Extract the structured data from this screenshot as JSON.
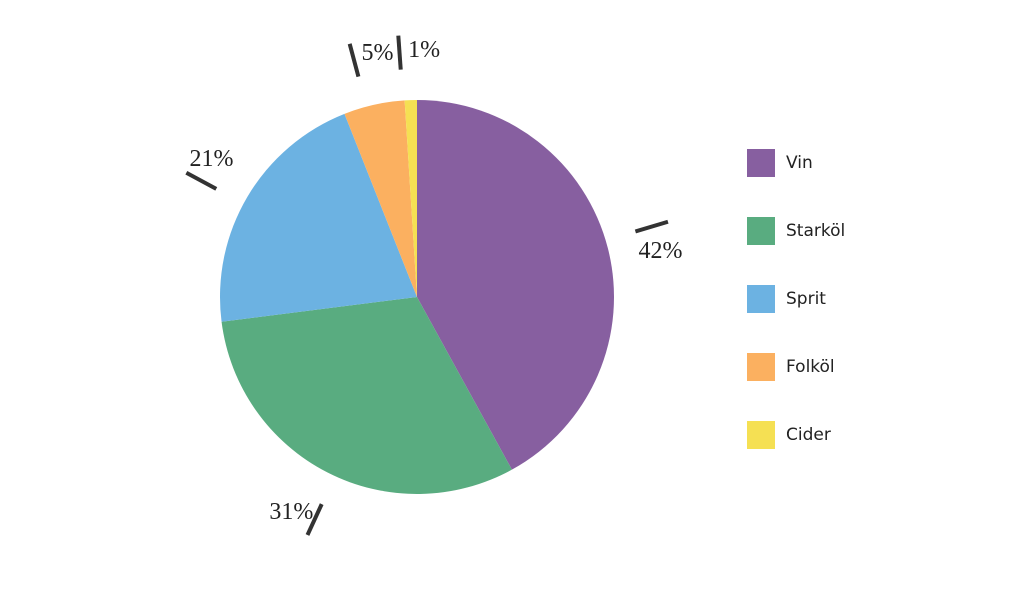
{
  "chart_data": {
    "type": "pie",
    "categories": [
      "Vin",
      "Starköl",
      "Sprit",
      "Folköl",
      "Cider"
    ],
    "values": [
      42,
      31,
      21,
      5,
      1
    ],
    "value_labels": [
      "42%",
      "31%",
      "21%",
      "5%",
      "1%"
    ],
    "colors": [
      "#875fa0",
      "#59ac80",
      "#6cb2e2",
      "#fbb060",
      "#f5e053"
    ],
    "legend": "right"
  }
}
